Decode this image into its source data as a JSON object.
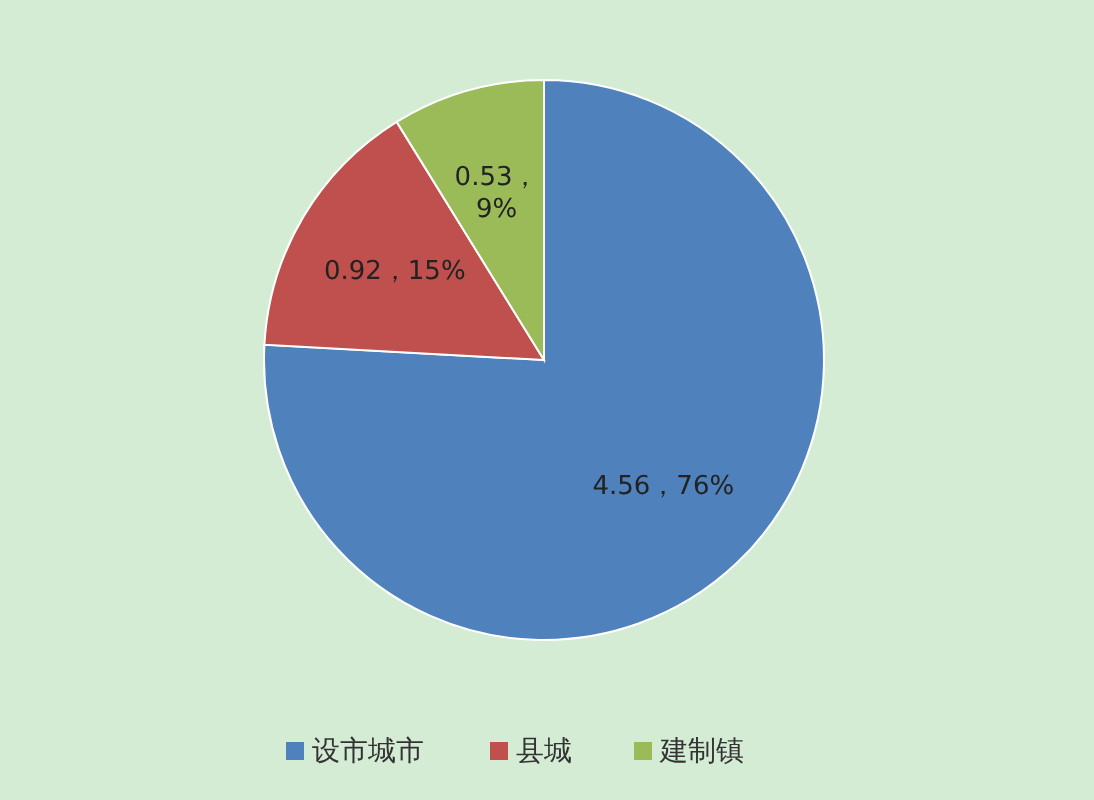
{
  "chart_data": {
    "type": "pie",
    "categories": [
      "设市城市",
      "县城",
      "建制镇"
    ],
    "values": [
      4.56,
      0.92,
      0.53
    ],
    "colors": [
      "#4f81bd",
      "#c0504d",
      "#9bbb59"
    ],
    "value_labels": [
      "4.56，76%",
      "0.92，15%",
      "0.53，9%"
    ],
    "legend": "bottom"
  }
}
